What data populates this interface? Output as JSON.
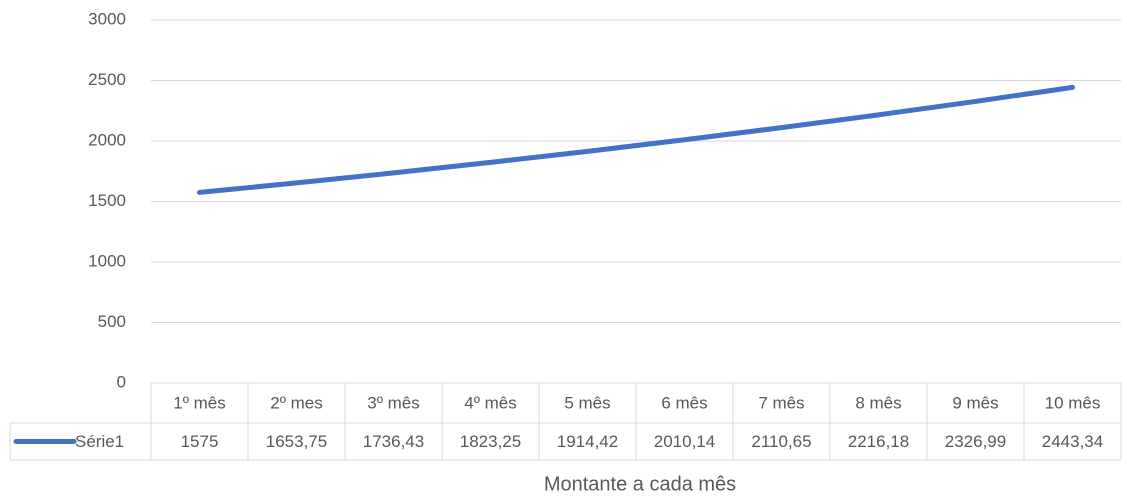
{
  "chart_data": {
    "type": "line",
    "categories": [
      "1º mês",
      "2º mes",
      "3º mês",
      "4º mês",
      "5 mês",
      "6 mês",
      "7 mês",
      "8 mês",
      "9 mês",
      "10 mês"
    ],
    "series": [
      {
        "name": "Série1",
        "color": "#4472c4",
        "values": [
          1575,
          1653.75,
          1736.43,
          1823.25,
          1914.42,
          2010.14,
          2110.65,
          2216.18,
          2326.99,
          2443.34
        ],
        "value_labels": [
          "1575",
          "1653,75",
          "1736,43",
          "1823,25",
          "1914,42",
          "2010,14",
          "2110,65",
          "2216,18",
          "2326,99",
          "2443,34"
        ]
      }
    ],
    "x_label": "Montante a cada mês",
    "ylim": [
      0,
      3000
    ],
    "yticks": [
      0,
      500,
      1000,
      1500,
      2000,
      2500,
      3000
    ],
    "grid": true
  }
}
